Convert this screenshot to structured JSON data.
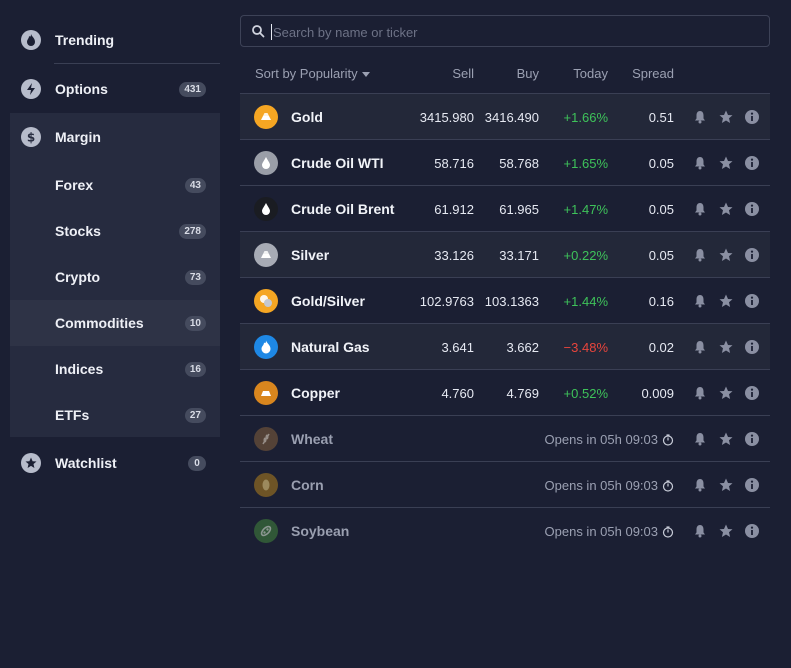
{
  "theme": {
    "bg": "#1b1f33",
    "positive": "#3ec25a",
    "negative": "#e8453c"
  },
  "sidebar": {
    "items": [
      {
        "label": "Trending",
        "icon": "flame-icon"
      },
      {
        "label": "Options",
        "icon": "lightning-icon",
        "count": "431"
      },
      {
        "label": "Margin",
        "icon": "dollar-icon"
      },
      {
        "label": "Watchlist",
        "icon": "star-icon",
        "count": "0"
      }
    ],
    "margin_sub": [
      {
        "label": "Forex",
        "count": "43"
      },
      {
        "label": "Stocks",
        "count": "278"
      },
      {
        "label": "Crypto",
        "count": "73"
      },
      {
        "label": "Commodities",
        "count": "10",
        "selected": true
      },
      {
        "label": "Indices",
        "count": "16"
      },
      {
        "label": "ETFs",
        "count": "27"
      }
    ]
  },
  "search": {
    "placeholder": "Search by name or ticker",
    "value": ""
  },
  "header": {
    "sort_label": "Sort by Popularity",
    "sell": "Sell",
    "buy": "Buy",
    "today": "Today",
    "spread": "Spread"
  },
  "rows": [
    {
      "name": "Gold",
      "icon": "gold-bar-icon",
      "color": "#f5a623",
      "sell": "3415.980",
      "buy": "3416.490",
      "today": "+1.66%",
      "dir": "up",
      "spread": "0.51",
      "active": true
    },
    {
      "name": "Crude Oil WTI",
      "icon": "oil-drop-icon",
      "color": "#9a9ea8",
      "sell": "58.716",
      "buy": "58.768",
      "today": "+1.65%",
      "dir": "up",
      "spread": "0.05"
    },
    {
      "name": "Crude Oil Brent",
      "icon": "oil-drop-icon",
      "color": "#1a1c22",
      "sell": "61.912",
      "buy": "61.965",
      "today": "+1.47%",
      "dir": "up",
      "spread": "0.05"
    },
    {
      "name": "Silver",
      "icon": "silver-bar-icon",
      "color": "#a7abb5",
      "sell": "33.126",
      "buy": "33.171",
      "today": "+0.22%",
      "dir": "up",
      "spread": "0.05",
      "active": true
    },
    {
      "name": "Gold/Silver",
      "icon": "gold-silver-icon",
      "color": "#f5a623",
      "sell": "102.9763",
      "buy": "103.1363",
      "today": "+1.44%",
      "dir": "up",
      "spread": "0.16"
    },
    {
      "name": "Natural Gas",
      "icon": "flame-icon",
      "color": "#1e88e5",
      "sell": "3.641",
      "buy": "3.662",
      "today": "−3.48%",
      "dir": "down",
      "spread": "0.02",
      "active": true
    },
    {
      "name": "Copper",
      "icon": "copper-bar-icon",
      "color": "#d9861e",
      "sell": "4.760",
      "buy": "4.769",
      "today": "+0.52%",
      "dir": "up",
      "spread": "0.009"
    },
    {
      "name": "Wheat",
      "icon": "wheat-icon",
      "color": "#7a5a3a",
      "opens": "Opens in 05h 09:03",
      "closed": true
    },
    {
      "name": "Corn",
      "icon": "corn-icon",
      "color": "#a5781e",
      "opens": "Opens in 05h 09:03",
      "closed": true
    },
    {
      "name": "Soybean",
      "icon": "soybean-icon",
      "color": "#3f7d3a",
      "opens": "Opens in 05h 09:03",
      "closed": true
    }
  ]
}
